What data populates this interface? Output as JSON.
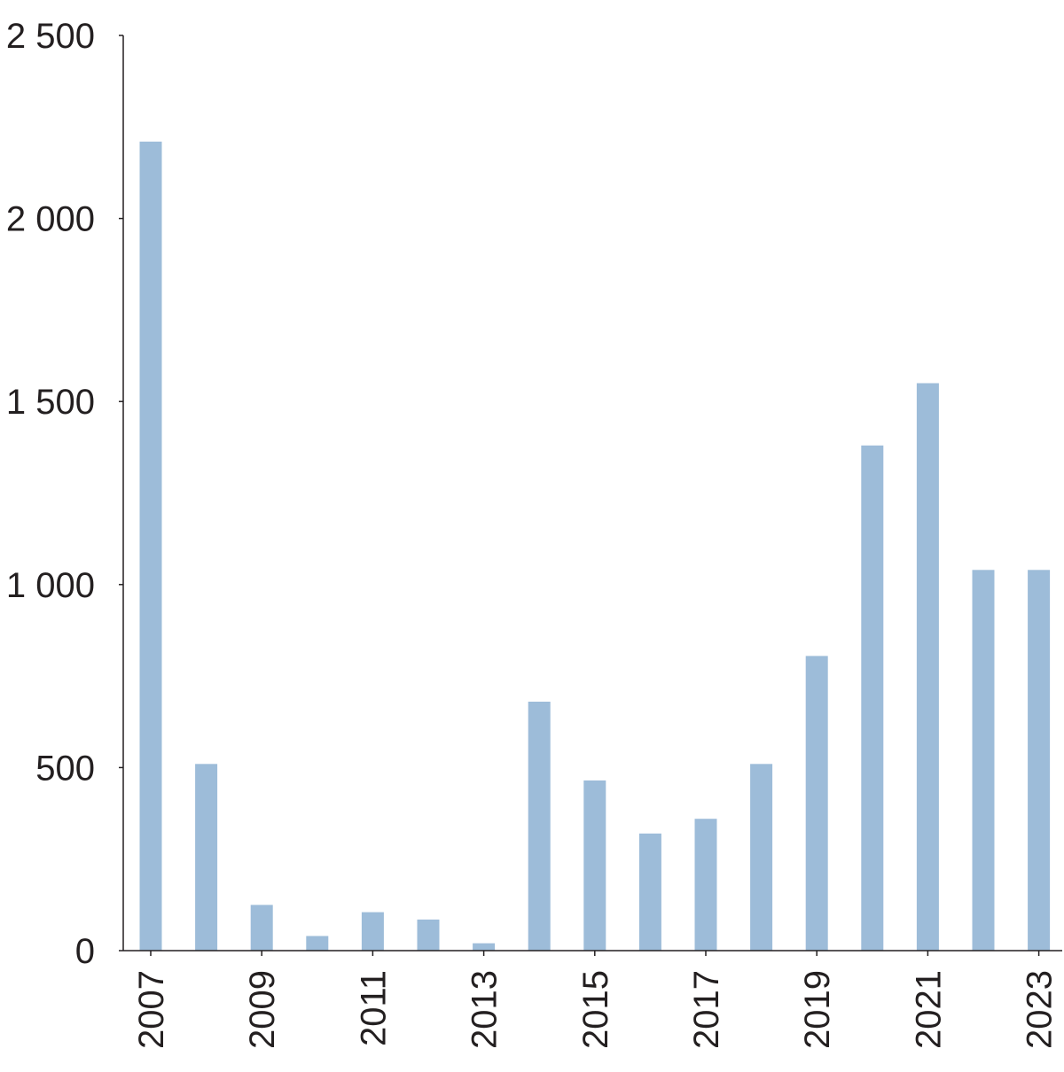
{
  "chart_data": {
    "type": "bar",
    "title": "",
    "xlabel": "",
    "ylabel": "",
    "categories": [
      "2007",
      "2008",
      "2009",
      "2010",
      "2011",
      "2012",
      "2013",
      "2014",
      "2015",
      "2016",
      "2017",
      "2018",
      "2019",
      "2020",
      "2021",
      "2022",
      "2023"
    ],
    "values": [
      2210,
      510,
      125,
      40,
      105,
      85,
      20,
      680,
      465,
      320,
      360,
      510,
      805,
      1380,
      1550,
      1040,
      1040
    ],
    "x_tick_labels": [
      "2007",
      "",
      "2009",
      "",
      "2011",
      "",
      "2013",
      "",
      "2015",
      "",
      "2017",
      "",
      "2019",
      "",
      "2021",
      "",
      "2023"
    ],
    "y_ticks": [
      0,
      500,
      1000,
      1500,
      2000,
      2500
    ],
    "y_tick_labels": [
      "0",
      "500",
      "1 000",
      "1 500",
      "2 000",
      "2 500"
    ],
    "ylim": [
      0,
      2500
    ],
    "grid": false,
    "legend": "none",
    "colors": {
      "bar": "#9dbcd9",
      "axis": "#231f20"
    }
  }
}
